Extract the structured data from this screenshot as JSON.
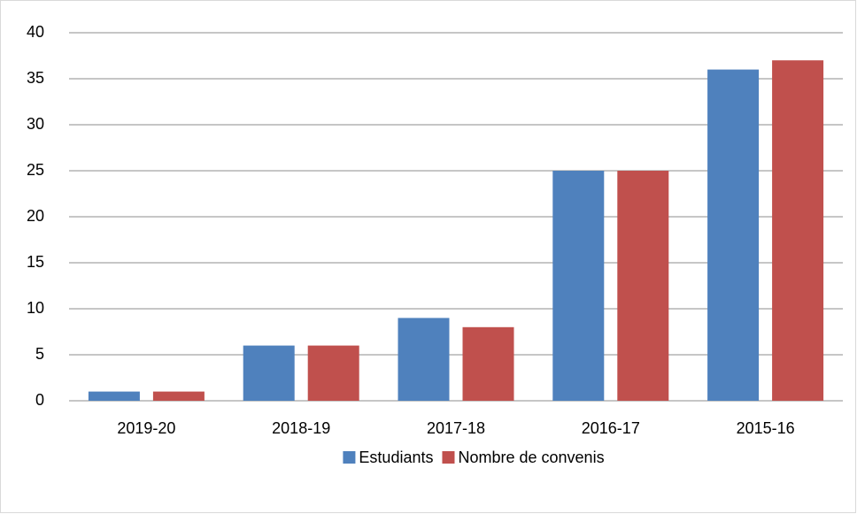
{
  "chart_data": {
    "type": "bar",
    "categories": [
      "2019-20",
      "2018-19",
      "2017-18",
      "2016-17",
      "2015-16"
    ],
    "series": [
      {
        "name": "Estudiants",
        "color": "#4f81bd",
        "values": [
          1,
          6,
          9,
          25,
          36
        ]
      },
      {
        "name": "Nombre de convenis",
        "color": "#c0504d",
        "values": [
          1,
          6,
          8,
          25,
          37
        ]
      }
    ],
    "ylim": [
      0,
      40
    ],
    "yticks": [
      0,
      5,
      10,
      15,
      20,
      25,
      30,
      35,
      40
    ],
    "grid": true,
    "legend": "bottom"
  }
}
